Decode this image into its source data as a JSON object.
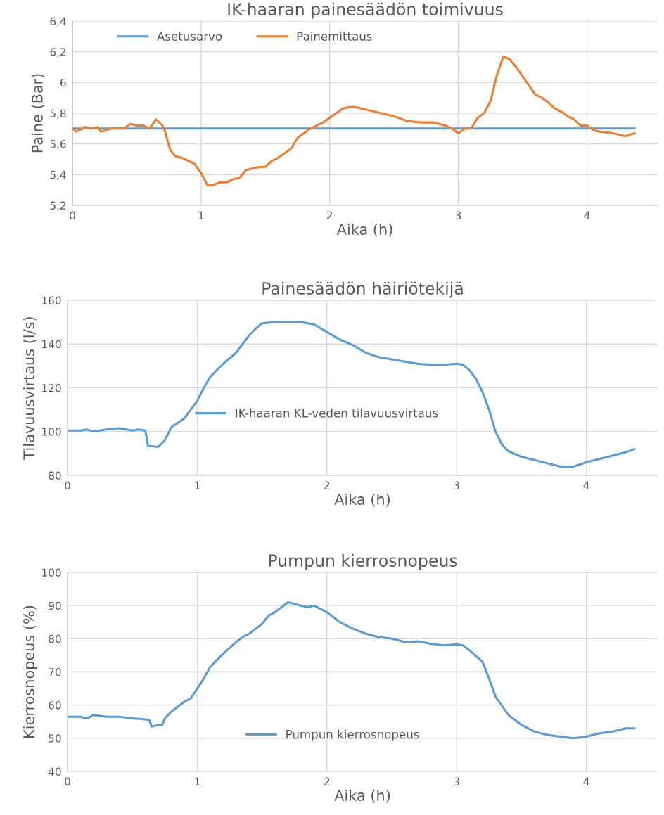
{
  "chart_data": [
    {
      "type": "line",
      "title": "IK-haaran painesäädön toimivuus",
      "xlabel": "Aika (h)",
      "ylabel": "Paine (Bar)",
      "xlim": [
        0,
        4.55
      ],
      "xticks": [
        0,
        1,
        2,
        3,
        4
      ],
      "ylim": [
        5.2,
        6.4
      ],
      "yticks": [
        {
          "value": 5.2,
          "label": "5,2"
        },
        {
          "value": 5.4,
          "label": "5,4"
        },
        {
          "value": 5.6,
          "label": "5,6"
        },
        {
          "value": 5.8,
          "label": "5,8"
        },
        6,
        {
          "value": 6.2,
          "label": "6,2"
        },
        {
          "value": 6.4,
          "label": "6,4"
        }
      ],
      "grid": true,
      "legend": "top left",
      "marker": "none",
      "line_style": "solid",
      "series": [
        {
          "name": "Asetusarvo",
          "color": "#5b9bd5",
          "x": [
            0,
            4.37
          ],
          "values": [
            5.7,
            5.7
          ]
        },
        {
          "name": "Painemittaus",
          "color": "#ed7d31",
          "x": [
            0,
            0.03,
            0.1,
            0.15,
            0.2,
            0.22,
            0.3,
            0.4,
            0.45,
            0.5,
            0.55,
            0.6,
            0.65,
            0.7,
            0.72,
            0.76,
            0.8,
            0.85,
            0.9,
            0.95,
            1.0,
            1.05,
            1.08,
            1.15,
            1.2,
            1.25,
            1.3,
            1.35,
            1.4,
            1.45,
            1.5,
            1.55,
            1.6,
            1.65,
            1.7,
            1.75,
            1.8,
            1.85,
            1.9,
            1.95,
            2.0,
            2.05,
            2.1,
            2.15,
            2.2,
            2.3,
            2.4,
            2.5,
            2.6,
            2.7,
            2.8,
            2.9,
            2.95,
            3.0,
            3.05,
            3.1,
            3.15,
            3.2,
            3.25,
            3.3,
            3.35,
            3.4,
            3.45,
            3.5,
            3.55,
            3.6,
            3.65,
            3.7,
            3.75,
            3.8,
            3.85,
            3.9,
            3.95,
            4.0,
            4.05,
            4.1,
            4.2,
            4.3,
            4.37
          ],
          "values": [
            5.7,
            5.68,
            5.71,
            5.7,
            5.71,
            5.68,
            5.7,
            5.7,
            5.73,
            5.72,
            5.72,
            5.7,
            5.76,
            5.72,
            5.68,
            5.56,
            5.52,
            5.51,
            5.49,
            5.47,
            5.41,
            5.33,
            5.33,
            5.35,
            5.35,
            5.37,
            5.38,
            5.43,
            5.44,
            5.45,
            5.45,
            5.49,
            5.51,
            5.54,
            5.57,
            5.64,
            5.67,
            5.7,
            5.72,
            5.74,
            5.77,
            5.8,
            5.83,
            5.84,
            5.84,
            5.82,
            5.8,
            5.78,
            5.75,
            5.74,
            5.74,
            5.72,
            5.7,
            5.67,
            5.7,
            5.7,
            5.77,
            5.8,
            5.88,
            6.05,
            6.17,
            6.15,
            6.1,
            6.04,
            5.98,
            5.92,
            5.9,
            5.87,
            5.83,
            5.81,
            5.78,
            5.76,
            5.72,
            5.72,
            5.69,
            5.68,
            5.67,
            5.65,
            5.67
          ]
        }
      ]
    },
    {
      "type": "line",
      "title": "Painesäädön häiriötekijä",
      "xlabel": "Aika (h)",
      "ylabel": "Tilavuusvirtaus (l/s)",
      "xlim": [
        0,
        4.55
      ],
      "xticks": [
        0,
        1,
        2,
        3,
        4
      ],
      "ylim": [
        80,
        160
      ],
      "yticks": [
        80,
        100,
        120,
        140,
        160
      ],
      "grid": true,
      "legend": "center left",
      "marker": "none",
      "line_style": "solid",
      "series": [
        {
          "name": "IK-haaran KL-veden tilavuusvirtaus",
          "color": "#5b9bd5",
          "x": [
            0,
            0.1,
            0.15,
            0.2,
            0.3,
            0.4,
            0.5,
            0.55,
            0.6,
            0.62,
            0.7,
            0.75,
            0.8,
            0.9,
            1.0,
            1.05,
            1.1,
            1.2,
            1.3,
            1.35,
            1.4,
            1.45,
            1.5,
            1.6,
            1.8,
            1.9,
            2.0,
            2.1,
            2.2,
            2.3,
            2.4,
            2.5,
            2.6,
            2.7,
            2.8,
            2.9,
            3.0,
            3.05,
            3.1,
            3.15,
            3.2,
            3.25,
            3.3,
            3.35,
            3.4,
            3.5,
            3.6,
            3.7,
            3.8,
            3.9,
            4.0,
            4.1,
            4.2,
            4.3,
            4.37
          ],
          "values": [
            100.5,
            100.5,
            101,
            100,
            101,
            101.5,
            100.5,
            101,
            100.5,
            93.5,
            93,
            96,
            102,
            106,
            114,
            120,
            125,
            131,
            136,
            140,
            144,
            147,
            149.5,
            150,
            150,
            149,
            145.5,
            142,
            139.5,
            136,
            134,
            133,
            132,
            131,
            130.5,
            130.5,
            131,
            130.5,
            128,
            124,
            118,
            110,
            100,
            94,
            91,
            88.5,
            87,
            85.5,
            84,
            84,
            86,
            87.5,
            89,
            90.5,
            92
          ]
        }
      ]
    },
    {
      "type": "line",
      "title": "Pumpun kierrosnopeus",
      "xlabel": "Aika (h)",
      "ylabel": "Kierrosnopeus (%)",
      "xlim": [
        0,
        4.55
      ],
      "xticks": [
        0,
        1,
        2,
        3,
        4
      ],
      "ylim": [
        40,
        100
      ],
      "yticks": [
        40,
        50,
        60,
        70,
        80,
        90,
        100
      ],
      "grid": true,
      "legend": "bottom",
      "marker": "none",
      "line_style": "solid",
      "series": [
        {
          "name": "Pumpun kierrosnopeus",
          "color": "#5b9bd5",
          "x": [
            0,
            0.1,
            0.15,
            0.2,
            0.3,
            0.4,
            0.5,
            0.6,
            0.63,
            0.65,
            0.7,
            0.73,
            0.75,
            0.8,
            0.85,
            0.9,
            0.95,
            1.0,
            1.05,
            1.1,
            1.2,
            1.3,
            1.35,
            1.4,
            1.5,
            1.55,
            1.6,
            1.65,
            1.7,
            1.75,
            1.8,
            1.85,
            1.9,
            2.0,
            2.1,
            2.2,
            2.3,
            2.4,
            2.5,
            2.6,
            2.7,
            2.8,
            2.9,
            3.0,
            3.05,
            3.1,
            3.2,
            3.25,
            3.3,
            3.4,
            3.5,
            3.6,
            3.7,
            3.8,
            3.9,
            4.0,
            4.1,
            4.2,
            4.3,
            4.37
          ],
          "values": [
            56.5,
            56.5,
            56,
            57,
            56.5,
            56.5,
            56,
            55.7,
            55.5,
            53.5,
            54,
            54,
            56,
            58,
            59.5,
            61,
            62,
            65,
            68,
            71.5,
            75.5,
            79,
            80.5,
            81.5,
            84.5,
            87,
            88,
            89.5,
            91,
            90.5,
            90,
            89.5,
            90,
            88,
            85,
            83,
            81.5,
            80.5,
            80,
            79,
            79.2,
            78.5,
            78,
            78.3,
            78,
            76.5,
            73,
            68,
            62.5,
            57,
            54,
            52,
            51,
            50.5,
            50,
            50.5,
            51.5,
            52,
            53,
            53
          ]
        }
      ]
    }
  ]
}
